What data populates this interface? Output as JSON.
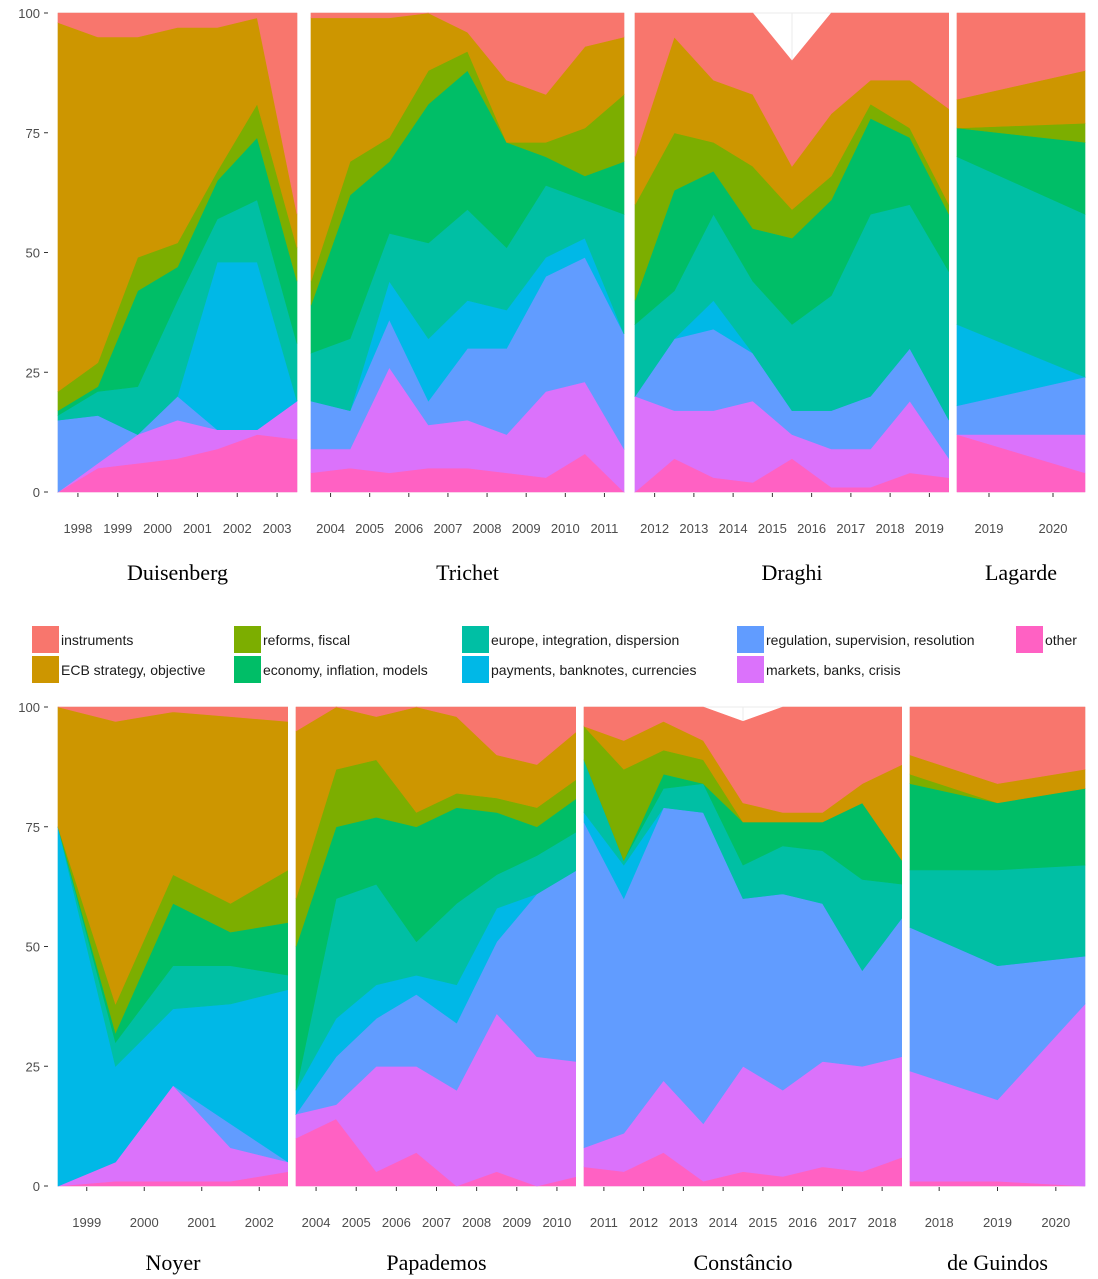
{
  "legend": {
    "items": [
      {
        "key": "instruments",
        "label": "instruments",
        "color": "#F8766D"
      },
      {
        "key": "strategy",
        "label": "ECB  strategy, objective",
        "color": "#CD9600"
      },
      {
        "key": "reforms",
        "label": "reforms, fiscal",
        "color": "#7CAE00"
      },
      {
        "key": "economy",
        "label": "economy, inflation, models",
        "color": "#00BE67"
      },
      {
        "key": "europe",
        "label": "europe, integration, dispersion",
        "color": "#00BFA4"
      },
      {
        "key": "payments",
        "label": "payments, banknotes, currencies",
        "color": "#00B8E7"
      },
      {
        "key": "regulation",
        "label": "regulation, supervision, resolution",
        "color": "#619CFF"
      },
      {
        "key": "markets",
        "label": "markets, banks, crisis",
        "color": "#DB72FB"
      },
      {
        "key": "other",
        "label": "other",
        "color": "#FF61C3"
      }
    ]
  },
  "chart_data": [
    {
      "type": "area",
      "stacked": true,
      "ylim": [
        0,
        100
      ],
      "yticks": [
        "0",
        "25",
        "50",
        "75",
        "100"
      ],
      "stack_order_bottom_to_top": [
        "other",
        "markets",
        "regulation",
        "payments",
        "europe",
        "economy",
        "reforms",
        "strategy",
        "instruments"
      ],
      "facets": [
        {
          "label": "Duisenberg",
          "ticks": [
            "1998",
            "1999",
            "2000",
            "2001",
            "2002",
            "2003"
          ],
          "values": [
            [
              0,
              0,
              15,
              0,
              1,
              1,
              4,
              77,
              2
            ],
            [
              5,
              1,
              10,
              0,
              5,
              1,
              5,
              68,
              5
            ],
            [
              6,
              6,
              0,
              0,
              10,
              20,
              7,
              46,
              5
            ],
            [
              7,
              8,
              5,
              0,
              20,
              7,
              5,
              45,
              3
            ],
            [
              9,
              4,
              0,
              35,
              9,
              8,
              2,
              30,
              3
            ],
            [
              12,
              1,
              0,
              35,
              13,
              13,
              7,
              18,
              1
            ],
            [
              11,
              8,
              0,
              0,
              12,
              13,
              7,
              7,
              42
            ]
          ]
        },
        {
          "label": "Trichet",
          "ticks": [
            "2004",
            "2005",
            "2006",
            "2007",
            "2008",
            "2009",
            "2010",
            "2011"
          ],
          "values": [
            [
              4,
              5,
              10,
              0,
              10,
              10,
              5,
              55,
              1
            ],
            [
              5,
              4,
              8,
              0,
              15,
              30,
              7,
              30,
              1
            ],
            [
              4,
              22,
              10,
              8,
              10,
              15,
              5,
              25,
              1
            ],
            [
              5,
              9,
              5,
              13,
              20,
              29,
              7,
              12,
              0
            ],
            [
              5,
              10,
              15,
              10,
              19,
              29,
              4,
              4,
              4
            ],
            [
              4,
              8,
              18,
              8,
              13,
              22,
              0,
              13,
              14
            ],
            [
              3,
              18,
              24,
              4,
              15,
              6,
              3,
              10,
              17
            ],
            [
              8,
              15,
              26,
              4,
              8,
              5,
              10,
              17,
              7
            ],
            [
              0,
              9,
              24,
              0,
              25,
              11,
              14,
              12,
              5
            ]
          ]
        },
        {
          "label": "Draghi",
          "ticks": [
            "2012",
            "2013",
            "2014",
            "2015",
            "2016",
            "2017",
            "2018",
            "2019"
          ],
          "values": [
            [
              0,
              20,
              0,
              0,
              15,
              5,
              20,
              10,
              30
            ],
            [
              7,
              10,
              15,
              0,
              10,
              21,
              12,
              20,
              5
            ],
            [
              3,
              14,
              17,
              6,
              18,
              9,
              6,
              13,
              14
            ],
            [
              2,
              17,
              10,
              0,
              15,
              11,
              13,
              15,
              17
            ],
            [
              7,
              5,
              5,
              0,
              18,
              18,
              6,
              9,
              22
            ],
            [
              1,
              8,
              8,
              0,
              24,
              20,
              5,
              13,
              21
            ],
            [
              1,
              8,
              11,
              0,
              38,
              20,
              3,
              5,
              14
            ],
            [
              4,
              15,
              11,
              0,
              30,
              14,
              2,
              10,
              14
            ],
            [
              3,
              4,
              8,
              0,
              31,
              12,
              2,
              20,
              20
            ]
          ]
        },
        {
          "label": "Lagarde",
          "ticks": [
            "2019",
            "2020"
          ],
          "values": [
            [
              12,
              0,
              6,
              17,
              35,
              6,
              0,
              6,
              18
            ],
            [
              4,
              8,
              12,
              0,
              34,
              15,
              4,
              11,
              12
            ]
          ]
        }
      ]
    },
    {
      "type": "area",
      "stacked": true,
      "ylim": [
        0,
        100
      ],
      "yticks": [
        "0",
        "25",
        "50",
        "75",
        "100"
      ],
      "stack_order_bottom_to_top": [
        "other",
        "markets",
        "regulation",
        "payments",
        "europe",
        "economy",
        "reforms",
        "strategy",
        "instruments"
      ],
      "facets": [
        {
          "label": "Noyer",
          "ticks": [
            "1999",
            "2000",
            "2001",
            "2002"
          ],
          "values": [
            [
              0,
              0,
              0,
              75,
              0,
              0,
              0,
              25,
              0
            ],
            [
              1,
              4,
              0,
              20,
              5,
              2,
              6,
              59,
              3
            ],
            [
              1,
              20,
              0,
              16,
              9,
              13,
              6,
              34,
              1
            ],
            [
              1,
              7,
              5,
              25,
              8,
              7,
              6,
              39,
              2
            ],
            [
              3,
              2,
              0,
              36,
              3,
              11,
              11,
              31,
              3
            ]
          ]
        },
        {
          "label": "Papademos",
          "ticks": [
            "2004",
            "2005",
            "2006",
            "2007",
            "2008",
            "2009",
            "2010"
          ],
          "values": [
            [
              10,
              5,
              0,
              5,
              0,
              30,
              10,
              35,
              5
            ],
            [
              14,
              3,
              10,
              8,
              25,
              15,
              12,
              13,
              0
            ],
            [
              3,
              22,
              10,
              7,
              21,
              14,
              12,
              9,
              2
            ],
            [
              7,
              18,
              15,
              4,
              7,
              24,
              3,
              22,
              0
            ],
            [
              0,
              20,
              14,
              8,
              17,
              20,
              3,
              16,
              2
            ],
            [
              3,
              33,
              15,
              7,
              7,
              13,
              3,
              9,
              10
            ],
            [
              0,
              27,
              34,
              0,
              8,
              6,
              4,
              9,
              12
            ],
            [
              2,
              24,
              40,
              0,
              8,
              7,
              4,
              10,
              5
            ]
          ]
        },
        {
          "label": "Constâncio",
          "ticks": [
            "2011",
            "2012",
            "2013",
            "2014",
            "2015",
            "2016",
            "2017",
            "2018"
          ],
          "values": [
            [
              4,
              4,
              68,
              2,
              11,
              0,
              7,
              0,
              4
            ],
            [
              3,
              8,
              49,
              7,
              1,
              0,
              19,
              6,
              7
            ],
            [
              7,
              15,
              57,
              0,
              4,
              3,
              5,
              6,
              3
            ],
            [
              1,
              12,
              65,
              0,
              6,
              0,
              5,
              4,
              7
            ],
            [
              3,
              22,
              35,
              0,
              7,
              9,
              0,
              4,
              17
            ],
            [
              2,
              18,
              41,
              0,
              10,
              5,
              0,
              2,
              22
            ],
            [
              4,
              22,
              33,
              0,
              11,
              6,
              0,
              2,
              22
            ],
            [
              3,
              22,
              20,
              0,
              19,
              16,
              0,
              4,
              16
            ],
            [
              6,
              21,
              29,
              0,
              7,
              5,
              0,
              20,
              12
            ]
          ]
        },
        {
          "label": "de Guindos",
          "ticks": [
            "2018",
            "2019",
            "2020"
          ],
          "values": [
            [
              1,
              23,
              30,
              0,
              12,
              18,
              2,
              4,
              10
            ],
            [
              1,
              17,
              28,
              0,
              20,
              14,
              0,
              4,
              16
            ],
            [
              0,
              38,
              10,
              0,
              19,
              16,
              0,
              4,
              13
            ]
          ]
        }
      ]
    }
  ]
}
